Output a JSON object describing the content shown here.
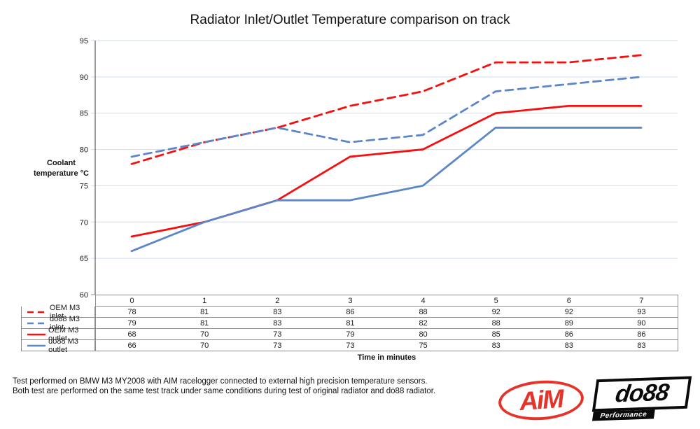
{
  "title": "Radiator Inlet/Outlet Temperature comparison on track",
  "chart_data": {
    "type": "line",
    "x": [
      "0",
      "1",
      "2",
      "3",
      "4",
      "5",
      "6",
      "7"
    ],
    "xlabel": "Time in minutes",
    "ylabel": "Coolant temperature °C",
    "ylabel_lines": [
      "Coolant",
      "temperature °C"
    ],
    "ylim": [
      60,
      95
    ],
    "ytick_step": 5,
    "grid": "horizontal",
    "legend_position": "data-table-left",
    "series": [
      {
        "name": "OEM M3 inlet",
        "values": [
          78,
          81,
          83,
          86,
          88,
          92,
          92,
          93
        ],
        "color": "#f50f0f",
        "dash": true
      },
      {
        "name": "do88 M3 inlet",
        "values": [
          79,
          81,
          83,
          81,
          82,
          88,
          89,
          90
        ],
        "color": "#5b87c9",
        "dash": true
      },
      {
        "name": "OEM M3 outlet",
        "values": [
          68,
          70,
          73,
          79,
          80,
          85,
          86,
          86
        ],
        "color": "#f50f0f",
        "dash": false
      },
      {
        "name": "do88 M3 outlet",
        "values": [
          66,
          70,
          73,
          73,
          75,
          83,
          83,
          83
        ],
        "color": "#5b87c9",
        "dash": false
      }
    ]
  },
  "footer": {
    "line1": "Test performed on BMW M3 MY2008 with AIM racelogger connected to external high precision temperature sensors.",
    "line2": "Both test are performed on the same test track under same conditions during test of original radiator and do88 radiator."
  },
  "logos": {
    "aim": {
      "text": "AiM",
      "color": "#e6332a"
    },
    "do88": {
      "text": "do88",
      "subtext": "Performance"
    }
  },
  "colors": {
    "red": "#f50f0f",
    "blue": "#5b87c9",
    "gridline": "#cedff2",
    "axis": "#595959",
    "table_border": "#8c8c8c",
    "text": "#1a1a1a"
  }
}
